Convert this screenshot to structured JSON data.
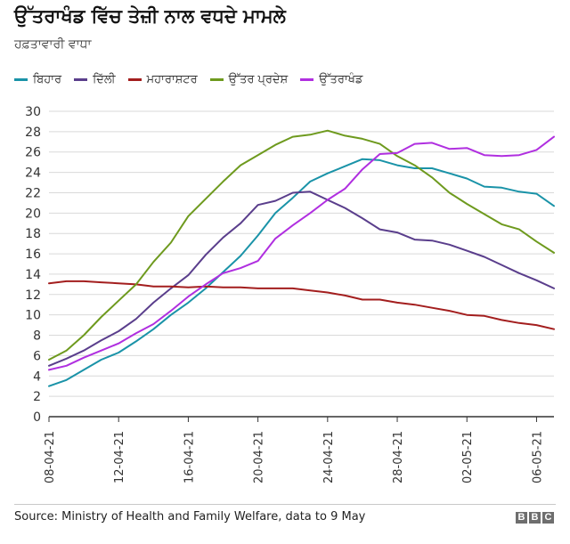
{
  "title": "ਉੱਤਰਾਖੰਡ ਵਿੱਚ ਤੇਜ਼ੀ ਨਾਲ ਵਧਦੇ ਮਾਮਲੇ",
  "subtitle": "ਹਫ਼ਤਾਵਾਰੀ ਵਾਧਾ",
  "source": "Source: Ministry of Health and Family Welfare, data to 9 May",
  "brand": [
    "B",
    "B",
    "C"
  ],
  "colors": {
    "bihar": "#1a93a8",
    "delhi": "#5a3e8c",
    "maharashtra": "#a31e1e",
    "up": "#6e9a1e",
    "uttarakhand": "#b02fe0",
    "grid": "#d9d9d9",
    "axis": "#333333"
  },
  "chart_data": {
    "type": "line",
    "title": "ਉੱਤਰਾਖੰਡ ਵਿੱਚ ਤੇਜ਼ੀ ਨਾਲ ਵਧਦੇ ਮਾਮਲੇ",
    "subtitle": "ਹਫ਼ਤਾਵਾਰੀ ਵਾਧਾ",
    "xlabel": "",
    "ylabel": "",
    "ylim": [
      0,
      30
    ],
    "yticks": [
      0,
      2,
      4,
      6,
      8,
      10,
      12,
      14,
      16,
      18,
      20,
      22,
      24,
      26,
      28,
      30
    ],
    "grid": true,
    "legend_position": "top",
    "x": [
      "08-04-21",
      "09-04-21",
      "10-04-21",
      "11-04-21",
      "12-04-21",
      "13-04-21",
      "14-04-21",
      "15-04-21",
      "16-04-21",
      "17-04-21",
      "18-04-21",
      "19-04-21",
      "20-04-21",
      "21-04-21",
      "22-04-21",
      "23-04-21",
      "24-04-21",
      "25-04-21",
      "26-04-21",
      "27-04-21",
      "28-04-21",
      "29-04-21",
      "30-04-21",
      "01-05-21",
      "02-05-21",
      "03-05-21",
      "04-05-21",
      "05-05-21",
      "06-05-21",
      "07-05-21"
    ],
    "xtick_labels": [
      "08-04-21",
      "12-04-21",
      "16-04-21",
      "20-04-21",
      "24-04-21",
      "28-04-21",
      "02-05-21",
      "06-05-21"
    ],
    "series": [
      {
        "key": "bihar",
        "name": "ਬਿਹਾਰ",
        "values": [
          3.0,
          3.6,
          4.6,
          5.6,
          6.3,
          7.4,
          8.6,
          10.0,
          11.2,
          12.6,
          14.2,
          15.8,
          17.8,
          20.0,
          21.5,
          23.1,
          23.9,
          24.6,
          25.3,
          25.2,
          24.7,
          24.4,
          24.4,
          23.9,
          23.4,
          22.6,
          22.5,
          22.1,
          21.9,
          20.7
        ]
      },
      {
        "key": "delhi",
        "name": "ਦਿੱਲੀ",
        "values": [
          5.0,
          5.7,
          6.5,
          7.5,
          8.4,
          9.6,
          11.2,
          12.6,
          13.9,
          15.9,
          17.6,
          19.0,
          20.8,
          21.2,
          22.0,
          22.1,
          21.3,
          20.5,
          19.5,
          18.4,
          18.1,
          17.4,
          17.3,
          16.9,
          16.3,
          15.7,
          14.9,
          14.1,
          13.4,
          12.6
        ]
      },
      {
        "key": "maharashtra",
        "name": "ਮਹਾਰਾਸ਼ਟਰ",
        "values": [
          13.1,
          13.3,
          13.3,
          13.2,
          13.1,
          13.0,
          12.8,
          12.8,
          12.7,
          12.8,
          12.7,
          12.7,
          12.6,
          12.6,
          12.6,
          12.4,
          12.2,
          11.9,
          11.5,
          11.5,
          11.2,
          11.0,
          10.7,
          10.4,
          10.0,
          9.9,
          9.5,
          9.2,
          9.0,
          8.6
        ]
      },
      {
        "key": "up",
        "name": "ਉੱਤਰ ਪ੍ਰਦੇਸ਼",
        "values": [
          5.6,
          6.5,
          8.0,
          9.8,
          11.4,
          13.0,
          15.2,
          17.1,
          19.7,
          21.4,
          23.1,
          24.7,
          25.7,
          26.7,
          27.5,
          27.7,
          28.1,
          27.6,
          27.3,
          26.8,
          25.6,
          24.7,
          23.5,
          22.0,
          20.9,
          19.9,
          18.9,
          18.4,
          17.2,
          16.1
        ]
      },
      {
        "key": "uttarakhand",
        "name": "ਉੱਤਰਾਖੰਡ",
        "values": [
          4.6,
          5.0,
          5.8,
          6.5,
          7.2,
          8.2,
          9.1,
          10.4,
          11.8,
          13.0,
          14.1,
          14.6,
          15.3,
          17.5,
          18.8,
          20.0,
          21.3,
          22.4,
          24.3,
          25.8,
          25.9,
          26.8,
          26.9,
          26.3,
          26.4,
          25.7,
          25.6,
          25.7,
          26.2,
          27.5
        ]
      }
    ]
  }
}
